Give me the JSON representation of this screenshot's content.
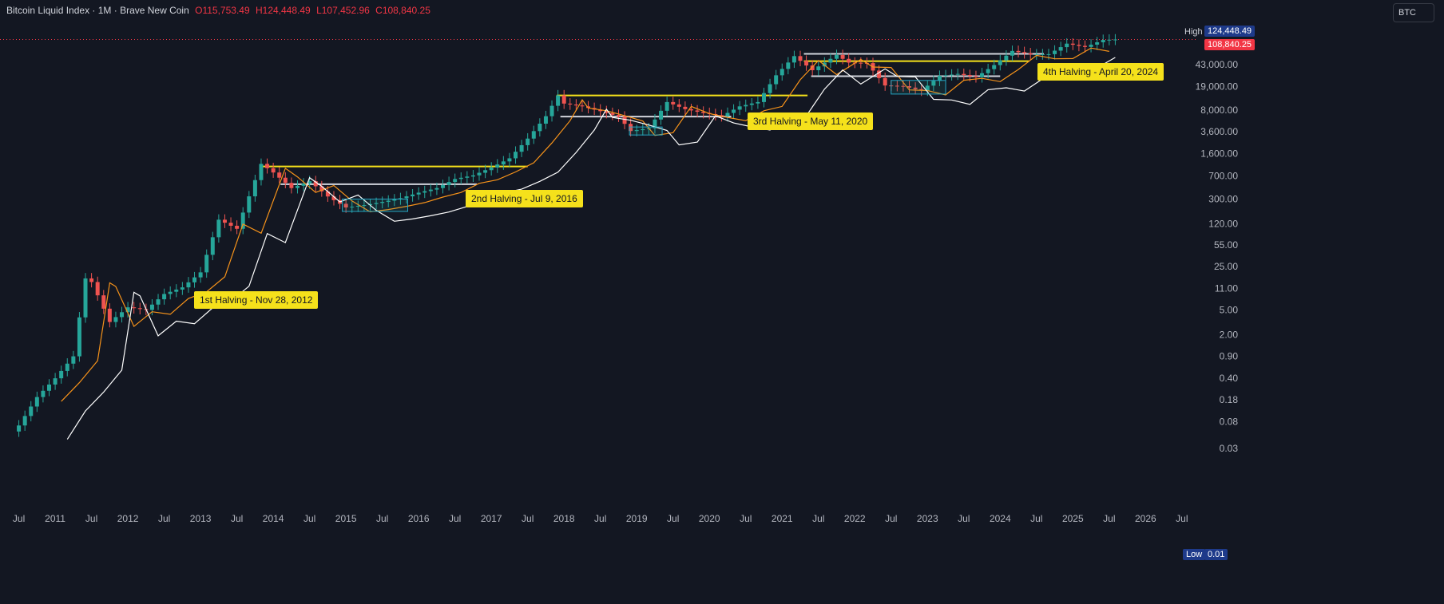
{
  "header": {
    "name": "Bitcoin Liquid Index · 1M · Brave New Coin",
    "o_label": "O",
    "o": "115,753.49",
    "h_label": "H",
    "h": "124,448.49",
    "l_label": "L",
    "l": "107,452.96",
    "c_label": "C",
    "c": "108,840.25"
  },
  "symbol_box": "BTC",
  "price_labels": {
    "high_label": "High",
    "high_value": "124,448.49",
    "last_value": "108,840.25",
    "low_label": "Low",
    "low_value": "0.01"
  },
  "y_ticks": [
    "43,000.00",
    "19,000.00",
    "8,000.00",
    "3,600.00",
    "1,600.00",
    "700.00",
    "300.00",
    "120.00",
    "55.00",
    "25.00",
    "11.00",
    "5.00",
    "2.00",
    "0.90",
    "0.40",
    "0.18",
    "0.08",
    "0.03"
  ],
  "x_ticks": [
    "Jul",
    "2011",
    "Jul",
    "2012",
    "Jul",
    "2013",
    "Jul",
    "2014",
    "Jul",
    "2015",
    "Jul",
    "2016",
    "Jul",
    "2017",
    "Jul",
    "2018",
    "Jul",
    "2019",
    "Jul",
    "2020",
    "Jul",
    "2021",
    "Jul",
    "2022",
    "Jul",
    "2023",
    "Jul",
    "2024",
    "Jul",
    "2025",
    "Jul",
    "2026",
    "Jul"
  ],
  "annotations": [
    {
      "text": "1st Halving - Nov 28, 2012",
      "date": "2012-11"
    },
    {
      "text": "2nd Halving - Jul 9, 2016",
      "date": "2016-07"
    },
    {
      "text": "3rd Halving - May 11, 2020",
      "date": "2020-05"
    },
    {
      "text": "4th Halving - April 20, 2024",
      "date": "2024-04"
    }
  ],
  "colors": {
    "background": "#131722",
    "up": "#26a69a",
    "down": "#ef5350",
    "ma_fast": "#f7931a",
    "ma_slow": "#ffffff",
    "highlight": "#f5e11b",
    "low_tag": "#1e3a8a"
  },
  "chart_data": {
    "type": "candlestick",
    "title": "Bitcoin Liquid Index · 1M · Brave New Coin",
    "y_scale": "log",
    "xlim": [
      "2010-06",
      "2026-09"
    ],
    "ylim": [
      0.01,
      124448.49
    ],
    "series": [
      {
        "name": "Bitcoin Liquid Index",
        "x": [
          "2010-07",
          "2010-10",
          "2011-01",
          "2011-04",
          "2011-06",
          "2011-07",
          "2011-10",
          "2012-01",
          "2012-04",
          "2012-07",
          "2012-10",
          "2013-01",
          "2013-04",
          "2013-07",
          "2013-11",
          "2014-01",
          "2014-04",
          "2014-07",
          "2014-10",
          "2015-01",
          "2015-04",
          "2015-07",
          "2015-10",
          "2016-01",
          "2016-04",
          "2016-07",
          "2016-10",
          "2017-01",
          "2017-04",
          "2017-07",
          "2017-10",
          "2017-12",
          "2018-01",
          "2018-04",
          "2018-07",
          "2018-10",
          "2018-12",
          "2019-03",
          "2019-06",
          "2019-09",
          "2019-12",
          "2020-03",
          "2020-06",
          "2020-09",
          "2020-12",
          "2021-03",
          "2021-06",
          "2021-10",
          "2021-12",
          "2022-03",
          "2022-06",
          "2022-09",
          "2022-12",
          "2023-03",
          "2023-06",
          "2023-09",
          "2023-12",
          "2024-03",
          "2024-06",
          "2024-09",
          "2024-12",
          "2025-03",
          "2025-06",
          "2025-08"
        ],
        "values": [
          0.07,
          0.2,
          0.4,
          0.9,
          16,
          14,
          3.2,
          5.5,
          5.0,
          9.0,
          11.5,
          20,
          140,
          100,
          1100,
          800,
          450,
          580,
          330,
          220,
          240,
          270,
          310,
          380,
          450,
          630,
          720,
          960,
          1350,
          2800,
          6400,
          13800,
          10200,
          9200,
          7700,
          6300,
          3700,
          4100,
          10800,
          8300,
          7200,
          6400,
          9200,
          10800,
          29000,
          58900,
          35000,
          61300,
          46300,
          45500,
          19900,
          19400,
          16500,
          28400,
          30500,
          27000,
          42300,
          71300,
          62700,
          63300,
          93400,
          82500,
          107000,
          108840
        ]
      }
    ],
    "moving_averages": [
      "orange MA",
      "white MA"
    ],
    "annotations": [
      "1st Halving - Nov 28, 2012",
      "2nd Halving - Jul 9, 2016",
      "3rd Halving - May 11, 2020",
      "4th Halving - April 20, 2024"
    ],
    "grid": false,
    "legend": "none"
  }
}
